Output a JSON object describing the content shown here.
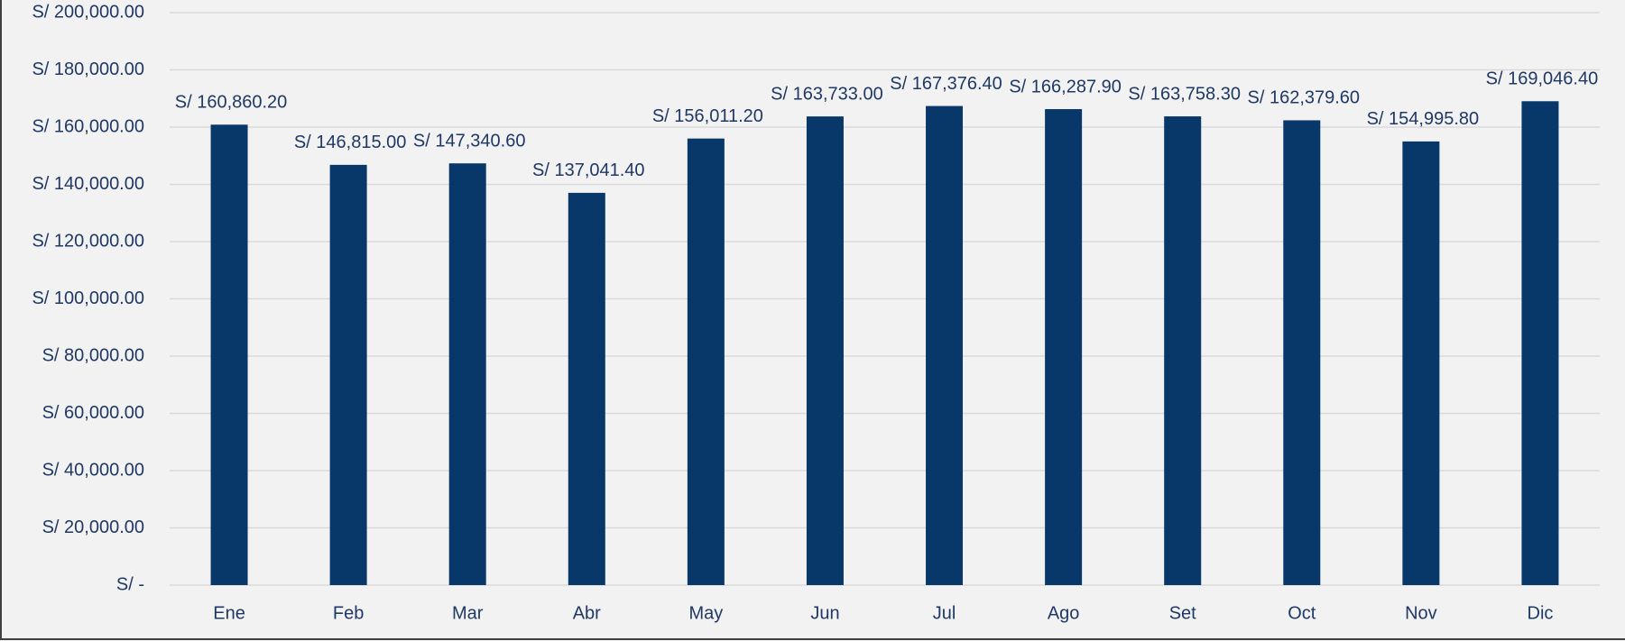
{
  "chart_data": {
    "type": "bar",
    "categories": [
      "Ene",
      "Feb",
      "Mar",
      "Abr",
      "May",
      "Jun",
      "Jul",
      "Ago",
      "Set",
      "Oct",
      "Nov",
      "Dic"
    ],
    "values": [
      160860.2,
      146815,
      147340.6,
      137041.4,
      156011.2,
      163733,
      167376.4,
      166287.9,
      163758.3,
      162379.6,
      154995.8,
      169046.4
    ],
    "value_labels": [
      "S/ 160,860.20",
      "S/ 146,815.00",
      "S/ 147,340.60",
      "S/ 137,041.40",
      "S/ 156,011.20",
      "S/ 163,733.00",
      "S/ 167,376.40",
      "S/ 166,287.90",
      "S/ 163,758.30",
      "S/ 162,379.60",
      "S/ 154,995.80",
      "S/ 169,046.40"
    ],
    "color": "#08386a",
    "ylim": [
      0,
      200000
    ],
    "yticks": [
      {
        "value": 0,
        "label": "S/ -"
      },
      {
        "value": 20000,
        "label": "S/ 20,000.00"
      },
      {
        "value": 40000,
        "label": "S/ 40,000.00"
      },
      {
        "value": 60000,
        "label": "S/ 60,000.00"
      },
      {
        "value": 80000,
        "label": "S/ 80,000.00"
      },
      {
        "value": 100000,
        "label": "S/ 100,000.00"
      },
      {
        "value": 120000,
        "label": "S/ 120,000.00"
      },
      {
        "value": 140000,
        "label": "S/ 140,000.00"
      },
      {
        "value": 160000,
        "label": "S/ 160,000.00"
      },
      {
        "value": 180000,
        "label": "S/ 180,000.00"
      },
      {
        "value": 200000,
        "label": "S/ 200,000.00"
      }
    ],
    "grid": true
  }
}
